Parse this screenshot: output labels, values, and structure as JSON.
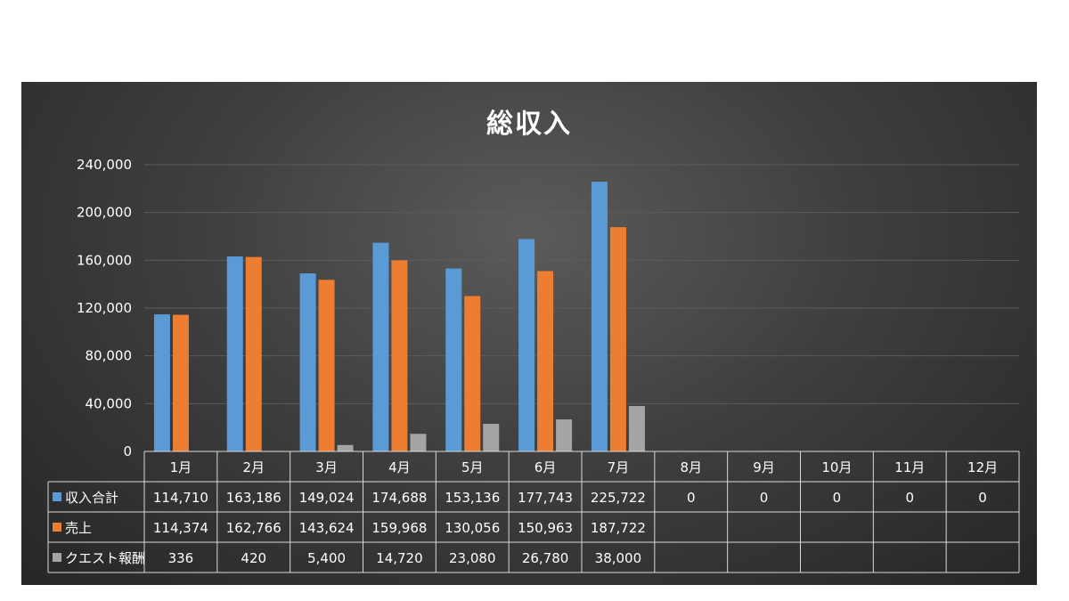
{
  "chart_data": {
    "type": "bar",
    "title": "総収入",
    "categories": [
      "1月",
      "2月",
      "3月",
      "4月",
      "5月",
      "6月",
      "7月",
      "8月",
      "9月",
      "10月",
      "11月",
      "12月"
    ],
    "series": [
      {
        "name": "収入合計",
        "color": "#5b9bd5",
        "values": [
          114710,
          163186,
          149024,
          174688,
          153136,
          177743,
          225722,
          0,
          0,
          0,
          0,
          0
        ],
        "table_values": [
          "114,710",
          "163,186",
          "149,024",
          "174,688",
          "153,136",
          "177,743",
          "225,722",
          "0",
          "0",
          "0",
          "0",
          "0"
        ]
      },
      {
        "name": "売上",
        "color": "#ed7d31",
        "values": [
          114374,
          162766,
          143624,
          159968,
          130056,
          150963,
          187722,
          null,
          null,
          null,
          null,
          null
        ],
        "table_values": [
          "114,374",
          "162,766",
          "143,624",
          "159,968",
          "130,056",
          "150,963",
          "187,722",
          "",
          "",
          "",
          "",
          ""
        ]
      },
      {
        "name": "クエスト報酬",
        "color": "#a5a5a5",
        "values": [
          336,
          420,
          5400,
          14720,
          23080,
          26780,
          38000,
          null,
          null,
          null,
          null,
          null
        ],
        "table_values": [
          "336",
          "420",
          "5,400",
          "14,720",
          "23,080",
          "26,780",
          "38,000",
          "",
          "",
          "",
          "",
          ""
        ]
      }
    ],
    "y_ticks": [
      0,
      40000,
      80000,
      120000,
      160000,
      200000,
      240000
    ],
    "y_tick_labels": [
      "0",
      "40,000",
      "80,000",
      "120,000",
      "160,000",
      "200,000",
      "240,000"
    ],
    "ylim": [
      0,
      240000
    ],
    "grid": true,
    "legend": "data-table"
  }
}
